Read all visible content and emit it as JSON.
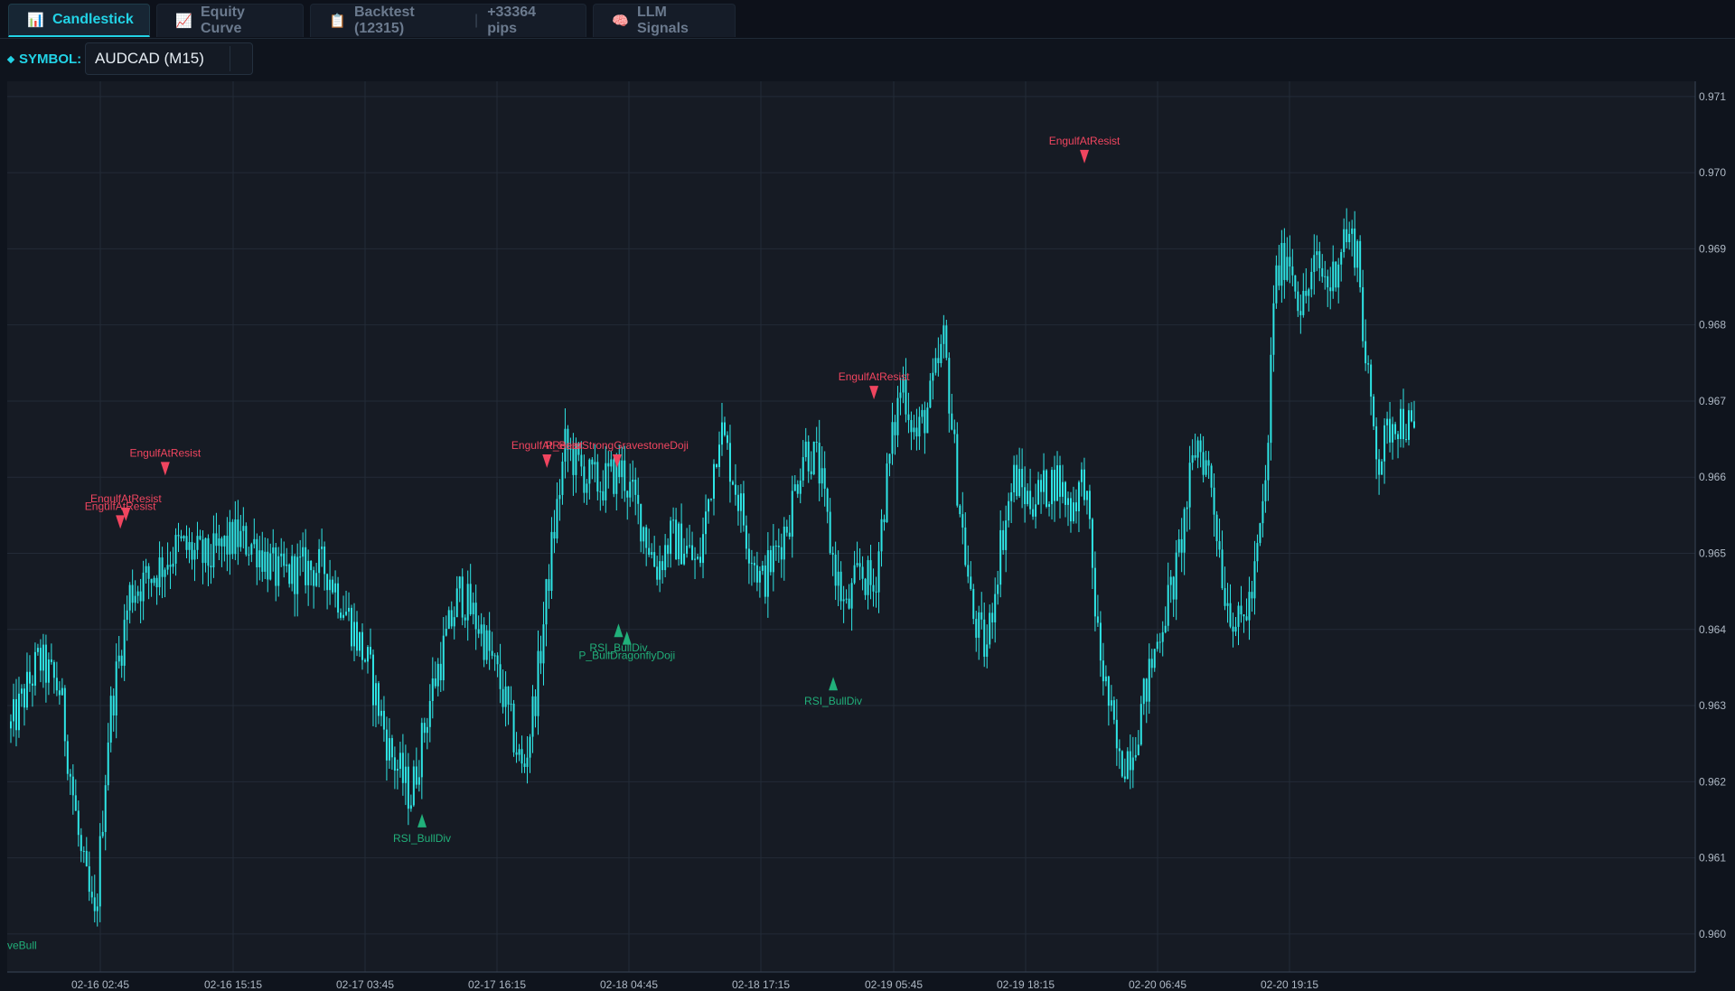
{
  "tabs": [
    {
      "label": "Candlestick",
      "icon": "bar-chart-icon",
      "active": true
    },
    {
      "label": "Equity Curve",
      "icon": "line-chart-icon",
      "active": false
    },
    {
      "label": "Backtest (12315)",
      "extra": "+33364 pips",
      "icon": "clipboard-icon",
      "active": false
    },
    {
      "label": "LLM Signals",
      "icon": "brain-icon",
      "active": false
    }
  ],
  "symbol": {
    "label": "SYMBOL:",
    "value": "AUDCAD (M15)"
  },
  "colors": {
    "accent": "#22d3e6",
    "candle": "#2ee6e6",
    "bear_signal": "#f0455f",
    "bull_signal": "#21b07a",
    "background": "#0f141d"
  },
  "chart_data": {
    "type": "candlestick",
    "title": "",
    "symbol": "AUDCAD",
    "timeframe": "M15",
    "ylim": [
      0.9595,
      0.9712
    ],
    "y_ticks": [
      "0.971",
      "0.970",
      "0.969",
      "0.968",
      "0.967",
      "0.966",
      "0.965",
      "0.964",
      "0.963",
      "0.962",
      "0.961",
      "0.960"
    ],
    "x_ticks": [
      "02-16 02:45",
      "02-16 15:15",
      "02-17 03:45",
      "02-17 16:15",
      "02-18 04:45",
      "02-18 17:15",
      "02-19 05:45",
      "02-19 18:15",
      "02-20 06:45",
      "02-20 19:15"
    ],
    "grid": true,
    "close_path": [
      [
        0.0,
        0.9627
      ],
      [
        0.02,
        0.9636
      ],
      [
        0.035,
        0.9632
      ],
      [
        0.05,
        0.961
      ],
      [
        0.06,
        0.9601
      ],
      [
        0.07,
        0.9628
      ],
      [
        0.085,
        0.9645
      ],
      [
        0.1,
        0.9647
      ],
      [
        0.12,
        0.9651
      ],
      [
        0.14,
        0.9649
      ],
      [
        0.16,
        0.9652
      ],
      [
        0.175,
        0.9651
      ],
      [
        0.19,
        0.9647
      ],
      [
        0.21,
        0.9648
      ],
      [
        0.225,
        0.9648
      ],
      [
        0.24,
        0.9642
      ],
      [
        0.255,
        0.9635
      ],
      [
        0.27,
        0.9624
      ],
      [
        0.285,
        0.9618
      ],
      [
        0.3,
        0.9632
      ],
      [
        0.32,
        0.9645
      ],
      [
        0.335,
        0.964
      ],
      [
        0.35,
        0.9632
      ],
      [
        0.365,
        0.9621
      ],
      [
        0.375,
        0.9633
      ],
      [
        0.385,
        0.965
      ],
      [
        0.395,
        0.9664
      ],
      [
        0.41,
        0.966
      ],
      [
        0.42,
        0.9659
      ],
      [
        0.435,
        0.9661
      ],
      [
        0.45,
        0.9654
      ],
      [
        0.46,
        0.9648
      ],
      [
        0.47,
        0.9652
      ],
      [
        0.48,
        0.9651
      ],
      [
        0.49,
        0.9648
      ],
      [
        0.505,
        0.9667
      ],
      [
        0.515,
        0.966
      ],
      [
        0.525,
        0.9652
      ],
      [
        0.535,
        0.9646
      ],
      [
        0.545,
        0.965
      ],
      [
        0.555,
        0.9655
      ],
      [
        0.565,
        0.9664
      ],
      [
        0.575,
        0.9662
      ],
      [
        0.585,
        0.965
      ],
      [
        0.595,
        0.9642
      ],
      [
        0.605,
        0.9648
      ],
      [
        0.615,
        0.9645
      ],
      [
        0.625,
        0.9661
      ],
      [
        0.635,
        0.9673
      ],
      [
        0.645,
        0.9665
      ],
      [
        0.655,
        0.967
      ],
      [
        0.665,
        0.9678
      ],
      [
        0.675,
        0.9658
      ],
      [
        0.685,
        0.9642
      ],
      [
        0.695,
        0.9637
      ],
      [
        0.705,
        0.9651
      ],
      [
        0.715,
        0.966
      ],
      [
        0.725,
        0.9657
      ],
      [
        0.735,
        0.9658
      ],
      [
        0.745,
        0.966
      ],
      [
        0.755,
        0.9656
      ],
      [
        0.765,
        0.966
      ],
      [
        0.775,
        0.9638
      ],
      [
        0.79,
        0.9622
      ],
      [
        0.8,
        0.9625
      ],
      [
        0.81,
        0.9633
      ],
      [
        0.82,
        0.9641
      ],
      [
        0.83,
        0.9647
      ],
      [
        0.845,
        0.9665
      ],
      [
        0.855,
        0.966
      ],
      [
        0.865,
        0.9645
      ],
      [
        0.875,
        0.964
      ],
      [
        0.885,
        0.9645
      ],
      [
        0.895,
        0.966
      ],
      [
        0.9,
        0.9685
      ],
      [
        0.91,
        0.969
      ],
      [
        0.92,
        0.9682
      ],
      [
        0.93,
        0.9688
      ],
      [
        0.94,
        0.9685
      ],
      [
        0.95,
        0.9692
      ],
      [
        0.96,
        0.969
      ],
      [
        0.965,
        0.9675
      ],
      [
        0.975,
        0.9662
      ],
      [
        0.985,
        0.9668
      ],
      [
        0.995,
        0.9667
      ],
      [
        1.0,
        0.9665
      ]
    ],
    "markers": [
      {
        "type": "bear",
        "label": "EngulfAtResist",
        "x": 0.078,
        "y": 0.9655
      },
      {
        "type": "bear",
        "label": "EngulfAtResist",
        "x": 0.082,
        "y": 0.9656
      },
      {
        "type": "bear",
        "label": "EngulfAtResist",
        "x": 0.11,
        "y": 0.9662
      },
      {
        "type": "bear",
        "label": "EngulfAtResist",
        "x": 0.382,
        "y": 0.9663
      },
      {
        "type": "bear",
        "label": "P_BearStrongGravestoneDoji",
        "x": 0.432,
        "y": 0.9663
      },
      {
        "type": "bear",
        "label": "EngulfAtResist",
        "x": 0.615,
        "y": 0.9672
      },
      {
        "type": "bear",
        "label": "EngulfAtResist",
        "x": 0.765,
        "y": 0.9703
      },
      {
        "type": "bull",
        "label": "RSI_BullDiv",
        "x": 0.293,
        "y": 0.9614
      },
      {
        "type": "bull",
        "label": "RSI_BullDiv",
        "x": 0.433,
        "y": 0.9639
      },
      {
        "type": "bull",
        "label": "P_BullDragonflyDoji",
        "x": 0.439,
        "y": 0.9638
      },
      {
        "type": "bull",
        "label": "RSI_BullDiv",
        "x": 0.586,
        "y": 0.9632
      },
      {
        "type": "bull",
        "label": "veBull",
        "x": 0.0,
        "y": 0.9598
      }
    ]
  }
}
